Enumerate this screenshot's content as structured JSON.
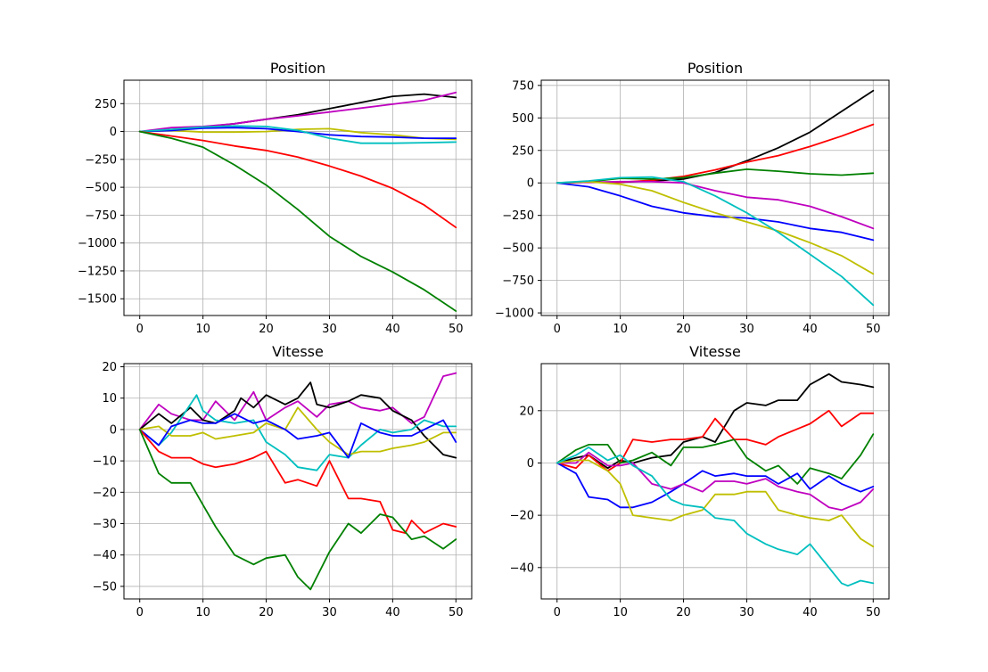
{
  "colors": {
    "b": "#0000ff",
    "g": "#008000",
    "r": "#ff0000",
    "c": "#00bfbf",
    "m": "#bf00bf",
    "y": "#bfbf00",
    "k": "#000000"
  },
  "chart_data": [
    {
      "type": "line",
      "title": "Position",
      "xlim": [
        -2.5,
        52.5
      ],
      "ylim": [
        -1650,
        460
      ],
      "grid": true,
      "xticks": [
        0,
        10,
        20,
        30,
        40,
        50
      ],
      "yticks": [
        250,
        0,
        -250,
        -500,
        -750,
        -1000,
        -1250,
        -1500
      ],
      "ytick_labels": [
        "250",
        "0",
        "−250",
        "−500",
        "−750",
        "−1000",
        "−1250",
        "−1500"
      ],
      "series": [
        {
          "color": "k",
          "x": [
            0,
            5,
            10,
            15,
            20,
            25,
            30,
            35,
            40,
            45,
            50
          ],
          "y": [
            0,
            15,
            40,
            70,
            110,
            150,
            205,
            260,
            315,
            335,
            305
          ]
        },
        {
          "color": "m",
          "x": [
            0,
            5,
            10,
            15,
            20,
            25,
            30,
            35,
            40,
            45,
            50
          ],
          "y": [
            0,
            35,
            45,
            70,
            110,
            140,
            175,
            210,
            245,
            280,
            350
          ]
        },
        {
          "color": "y",
          "x": [
            0,
            5,
            10,
            15,
            20,
            25,
            30,
            35,
            40,
            45,
            50
          ],
          "y": [
            0,
            10,
            -5,
            -5,
            0,
            20,
            25,
            -10,
            -30,
            -60,
            -70
          ]
        },
        {
          "color": "b",
          "x": [
            0,
            5,
            10,
            15,
            20,
            25,
            30,
            35,
            40,
            45,
            50
          ],
          "y": [
            0,
            10,
            30,
            35,
            25,
            0,
            -30,
            -45,
            -50,
            -60,
            -60
          ]
        },
        {
          "color": "c",
          "x": [
            0,
            5,
            10,
            15,
            20,
            25,
            30,
            35,
            40,
            45,
            50
          ],
          "y": [
            0,
            20,
            40,
            50,
            45,
            10,
            -60,
            -105,
            -105,
            -100,
            -95
          ]
        },
        {
          "color": "r",
          "x": [
            0,
            5,
            10,
            15,
            20,
            25,
            30,
            35,
            40,
            45,
            50
          ],
          "y": [
            0,
            -40,
            -80,
            -130,
            -170,
            -230,
            -310,
            -400,
            -510,
            -660,
            -860
          ]
        },
        {
          "color": "g",
          "x": [
            0,
            5,
            10,
            15,
            20,
            25,
            30,
            35,
            40,
            45,
            50
          ],
          "y": [
            0,
            -60,
            -140,
            -300,
            -480,
            -700,
            -940,
            -1120,
            -1260,
            -1420,
            -1610
          ]
        }
      ]
    },
    {
      "type": "line",
      "title": "Position",
      "xlim": [
        -2.5,
        52.5
      ],
      "ylim": [
        -1020,
        790
      ],
      "grid": true,
      "xticks": [
        0,
        10,
        20,
        30,
        40,
        50
      ],
      "yticks": [
        750,
        500,
        250,
        0,
        -250,
        -500,
        -750,
        -1000
      ],
      "ytick_labels": [
        "750",
        "500",
        "250",
        "0",
        "−250",
        "−500",
        "−750",
        "−1000"
      ],
      "series": [
        {
          "color": "k",
          "x": [
            0,
            5,
            10,
            15,
            20,
            25,
            30,
            35,
            40,
            45,
            50
          ],
          "y": [
            0,
            5,
            5,
            15,
            30,
            80,
            170,
            270,
            390,
            550,
            710
          ]
        },
        {
          "color": "r",
          "x": [
            0,
            5,
            10,
            15,
            20,
            25,
            30,
            35,
            40,
            45,
            50
          ],
          "y": [
            0,
            5,
            5,
            20,
            50,
            100,
            160,
            210,
            280,
            360,
            450
          ]
        },
        {
          "color": "g",
          "x": [
            0,
            5,
            10,
            15,
            20,
            25,
            30,
            35,
            40,
            45,
            50
          ],
          "y": [
            0,
            10,
            35,
            30,
            40,
            75,
            105,
            90,
            70,
            60,
            75
          ]
        },
        {
          "color": "m",
          "x": [
            0,
            5,
            10,
            15,
            20,
            25,
            30,
            35,
            40,
            45,
            50
          ],
          "y": [
            0,
            5,
            10,
            10,
            0,
            -60,
            -110,
            -130,
            -180,
            -260,
            -350
          ]
        },
        {
          "color": "b",
          "x": [
            0,
            5,
            10,
            15,
            20,
            25,
            30,
            35,
            40,
            45,
            50
          ],
          "y": [
            0,
            -30,
            -100,
            -180,
            -230,
            -260,
            -270,
            -300,
            -350,
            -380,
            -440
          ]
        },
        {
          "color": "y",
          "x": [
            0,
            5,
            10,
            15,
            20,
            25,
            30,
            35,
            40,
            45,
            50
          ],
          "y": [
            0,
            10,
            -10,
            -60,
            -150,
            -230,
            -300,
            -370,
            -460,
            -560,
            -700
          ]
        },
        {
          "color": "c",
          "x": [
            0,
            5,
            10,
            15,
            20,
            25,
            30,
            35,
            40,
            45,
            50
          ],
          "y": [
            0,
            15,
            40,
            45,
            10,
            -100,
            -230,
            -380,
            -550,
            -720,
            -940
          ]
        }
      ]
    },
    {
      "type": "line",
      "title": "Vitesse",
      "xlim": [
        -2.5,
        52.5
      ],
      "ylim": [
        -54,
        21
      ],
      "grid": true,
      "xticks": [
        0,
        10,
        20,
        30,
        40,
        50
      ],
      "yticks": [
        20,
        10,
        0,
        -10,
        -20,
        -30,
        -40,
        -50
      ],
      "ytick_labels": [
        "20",
        "10",
        "0",
        "−10",
        "−20",
        "−30",
        "−40",
        "−50"
      ],
      "series": [
        {
          "color": "m",
          "x": [
            0,
            3,
            5,
            8,
            10,
            12,
            15,
            18,
            20,
            23,
            25,
            28,
            30,
            33,
            35,
            38,
            40,
            43,
            45,
            48,
            50
          ],
          "y": [
            0,
            8,
            5,
            3,
            3,
            9,
            3,
            12,
            3,
            7,
            9,
            4,
            8,
            9,
            7,
            6,
            7,
            2,
            4,
            17,
            18
          ]
        },
        {
          "color": "k",
          "x": [
            0,
            3,
            5,
            8,
            10,
            12,
            15,
            16,
            18,
            20,
            23,
            25,
            27,
            28,
            30,
            33,
            35,
            38,
            40,
            43,
            45,
            48,
            50
          ],
          "y": [
            0,
            5,
            2,
            7,
            3,
            2,
            6,
            10,
            7,
            11,
            8,
            10,
            15,
            8,
            7,
            9,
            11,
            10,
            6,
            3,
            -2,
            -8,
            -9
          ]
        },
        {
          "color": "c",
          "x": [
            0,
            3,
            5,
            8,
            9,
            10,
            12,
            15,
            18,
            20,
            23,
            25,
            28,
            30,
            33,
            35,
            38,
            40,
            43,
            45,
            48,
            50
          ],
          "y": [
            0,
            -5,
            -1,
            8,
            11,
            6,
            3,
            2,
            3,
            -4,
            -8,
            -12,
            -13,
            -8,
            -9,
            -5,
            0,
            -1,
            0,
            3,
            1,
            1
          ]
        },
        {
          "color": "y",
          "x": [
            0,
            3,
            5,
            8,
            10,
            12,
            15,
            18,
            20,
            23,
            25,
            28,
            30,
            33,
            35,
            38,
            40,
            43,
            45,
            48,
            50
          ],
          "y": [
            0,
            1,
            -2,
            -2,
            -1,
            -3,
            -2,
            -1,
            2,
            0,
            7,
            0,
            -4,
            -8,
            -7,
            -7,
            -6,
            -5,
            -4,
            -1,
            -1
          ]
        },
        {
          "color": "b",
          "x": [
            0,
            3,
            5,
            8,
            10,
            12,
            15,
            18,
            20,
            23,
            25,
            28,
            30,
            33,
            35,
            38,
            40,
            43,
            45,
            48,
            50
          ],
          "y": [
            0,
            -5,
            1,
            3,
            2,
            2,
            5,
            2,
            3,
            0,
            -3,
            -2,
            -1,
            -9,
            2,
            -1,
            -2,
            -2,
            0,
            3,
            -4
          ]
        },
        {
          "color": "r",
          "x": [
            0,
            3,
            5,
            8,
            10,
            12,
            15,
            18,
            20,
            23,
            25,
            28,
            30,
            33,
            35,
            38,
            40,
            42,
            43,
            45,
            48,
            50
          ],
          "y": [
            0,
            -7,
            -9,
            -9,
            -11,
            -12,
            -11,
            -9,
            -7,
            -17,
            -16,
            -18,
            -10,
            -22,
            -22,
            -23,
            -32,
            -33,
            -29,
            -33,
            -30,
            -31
          ]
        },
        {
          "color": "g",
          "x": [
            0,
            3,
            5,
            8,
            10,
            12,
            15,
            18,
            20,
            23,
            25,
            27,
            30,
            33,
            35,
            38,
            40,
            43,
            45,
            48,
            50
          ],
          "y": [
            0,
            -14,
            -17,
            -17,
            -24,
            -31,
            -40,
            -43,
            -41,
            -40,
            -47,
            -51,
            -39,
            -30,
            -33,
            -27,
            -28,
            -35,
            -34,
            -38,
            -35
          ]
        }
      ]
    },
    {
      "type": "line",
      "title": "Vitesse",
      "xlim": [
        -2.5,
        52.5
      ],
      "ylim": [
        -52,
        38
      ],
      "grid": true,
      "xticks": [
        0,
        10,
        20,
        30,
        40,
        50
      ],
      "yticks": [
        20,
        0,
        -20,
        -40
      ],
      "ytick_labels": [
        "20",
        "0",
        "−20",
        "−40"
      ],
      "series": [
        {
          "color": "k",
          "x": [
            0,
            3,
            5,
            8,
            10,
            12,
            15,
            18,
            20,
            23,
            25,
            28,
            30,
            33,
            35,
            38,
            40,
            43,
            45,
            48,
            50
          ],
          "y": [
            0,
            2,
            3,
            -2,
            1,
            0,
            2,
            3,
            8,
            10,
            8,
            20,
            23,
            22,
            24,
            24,
            30,
            34,
            31,
            30,
            29
          ]
        },
        {
          "color": "r",
          "x": [
            0,
            3,
            5,
            8,
            10,
            12,
            15,
            18,
            20,
            23,
            25,
            28,
            30,
            33,
            35,
            38,
            40,
            43,
            45,
            48,
            50
          ],
          "y": [
            0,
            -2,
            3,
            -3,
            0,
            9,
            8,
            9,
            9,
            10,
            17,
            9,
            9,
            7,
            10,
            13,
            15,
            20,
            14,
            19,
            19
          ]
        },
        {
          "color": "g",
          "x": [
            0,
            3,
            5,
            8,
            10,
            12,
            15,
            18,
            20,
            23,
            25,
            28,
            30,
            33,
            35,
            38,
            40,
            43,
            45,
            48,
            50
          ],
          "y": [
            0,
            5,
            7,
            7,
            0,
            1,
            4,
            -1,
            6,
            6,
            7,
            9,
            2,
            -3,
            -1,
            -8,
            -2,
            -4,
            -6,
            3,
            11
          ]
        },
        {
          "color": "b",
          "x": [
            0,
            3,
            5,
            8,
            10,
            12,
            15,
            18,
            20,
            23,
            25,
            28,
            30,
            33,
            35,
            38,
            40,
            43,
            45,
            48,
            50
          ],
          "y": [
            0,
            -4,
            -13,
            -14,
            -17,
            -17,
            -15,
            -11,
            -8,
            -3,
            -5,
            -4,
            -5,
            -5,
            -8,
            -4,
            -10,
            -5,
            -8,
            -11,
            -9
          ]
        },
        {
          "color": "m",
          "x": [
            0,
            3,
            5,
            8,
            10,
            12,
            15,
            18,
            20,
            23,
            25,
            28,
            30,
            33,
            35,
            38,
            40,
            43,
            45,
            48,
            50
          ],
          "y": [
            0,
            0,
            4,
            -1,
            -1,
            0,
            -8,
            -10,
            -8,
            -11,
            -7,
            -7,
            -8,
            -6,
            -9,
            -11,
            -12,
            -17,
            -18,
            -15,
            -10
          ]
        },
        {
          "color": "y",
          "x": [
            0,
            3,
            5,
            8,
            10,
            12,
            15,
            18,
            20,
            23,
            25,
            28,
            30,
            33,
            35,
            38,
            40,
            43,
            45,
            48,
            50
          ],
          "y": [
            0,
            1,
            1,
            -3,
            -8,
            -20,
            -21,
            -22,
            -20,
            -18,
            -12,
            -12,
            -11,
            -11,
            -18,
            -20,
            -21,
            -22,
            -20,
            -29,
            -32
          ]
        },
        {
          "color": "c",
          "x": [
            0,
            3,
            5,
            8,
            10,
            12,
            15,
            18,
            20,
            23,
            25,
            28,
            30,
            33,
            35,
            38,
            40,
            43,
            45,
            46,
            48,
            50
          ],
          "y": [
            0,
            3,
            6,
            1,
            3,
            -1,
            -5,
            -14,
            -16,
            -17,
            -21,
            -22,
            -27,
            -31,
            -33,
            -35,
            -31,
            -40,
            -46,
            -47,
            -45,
            -46
          ]
        }
      ]
    }
  ]
}
